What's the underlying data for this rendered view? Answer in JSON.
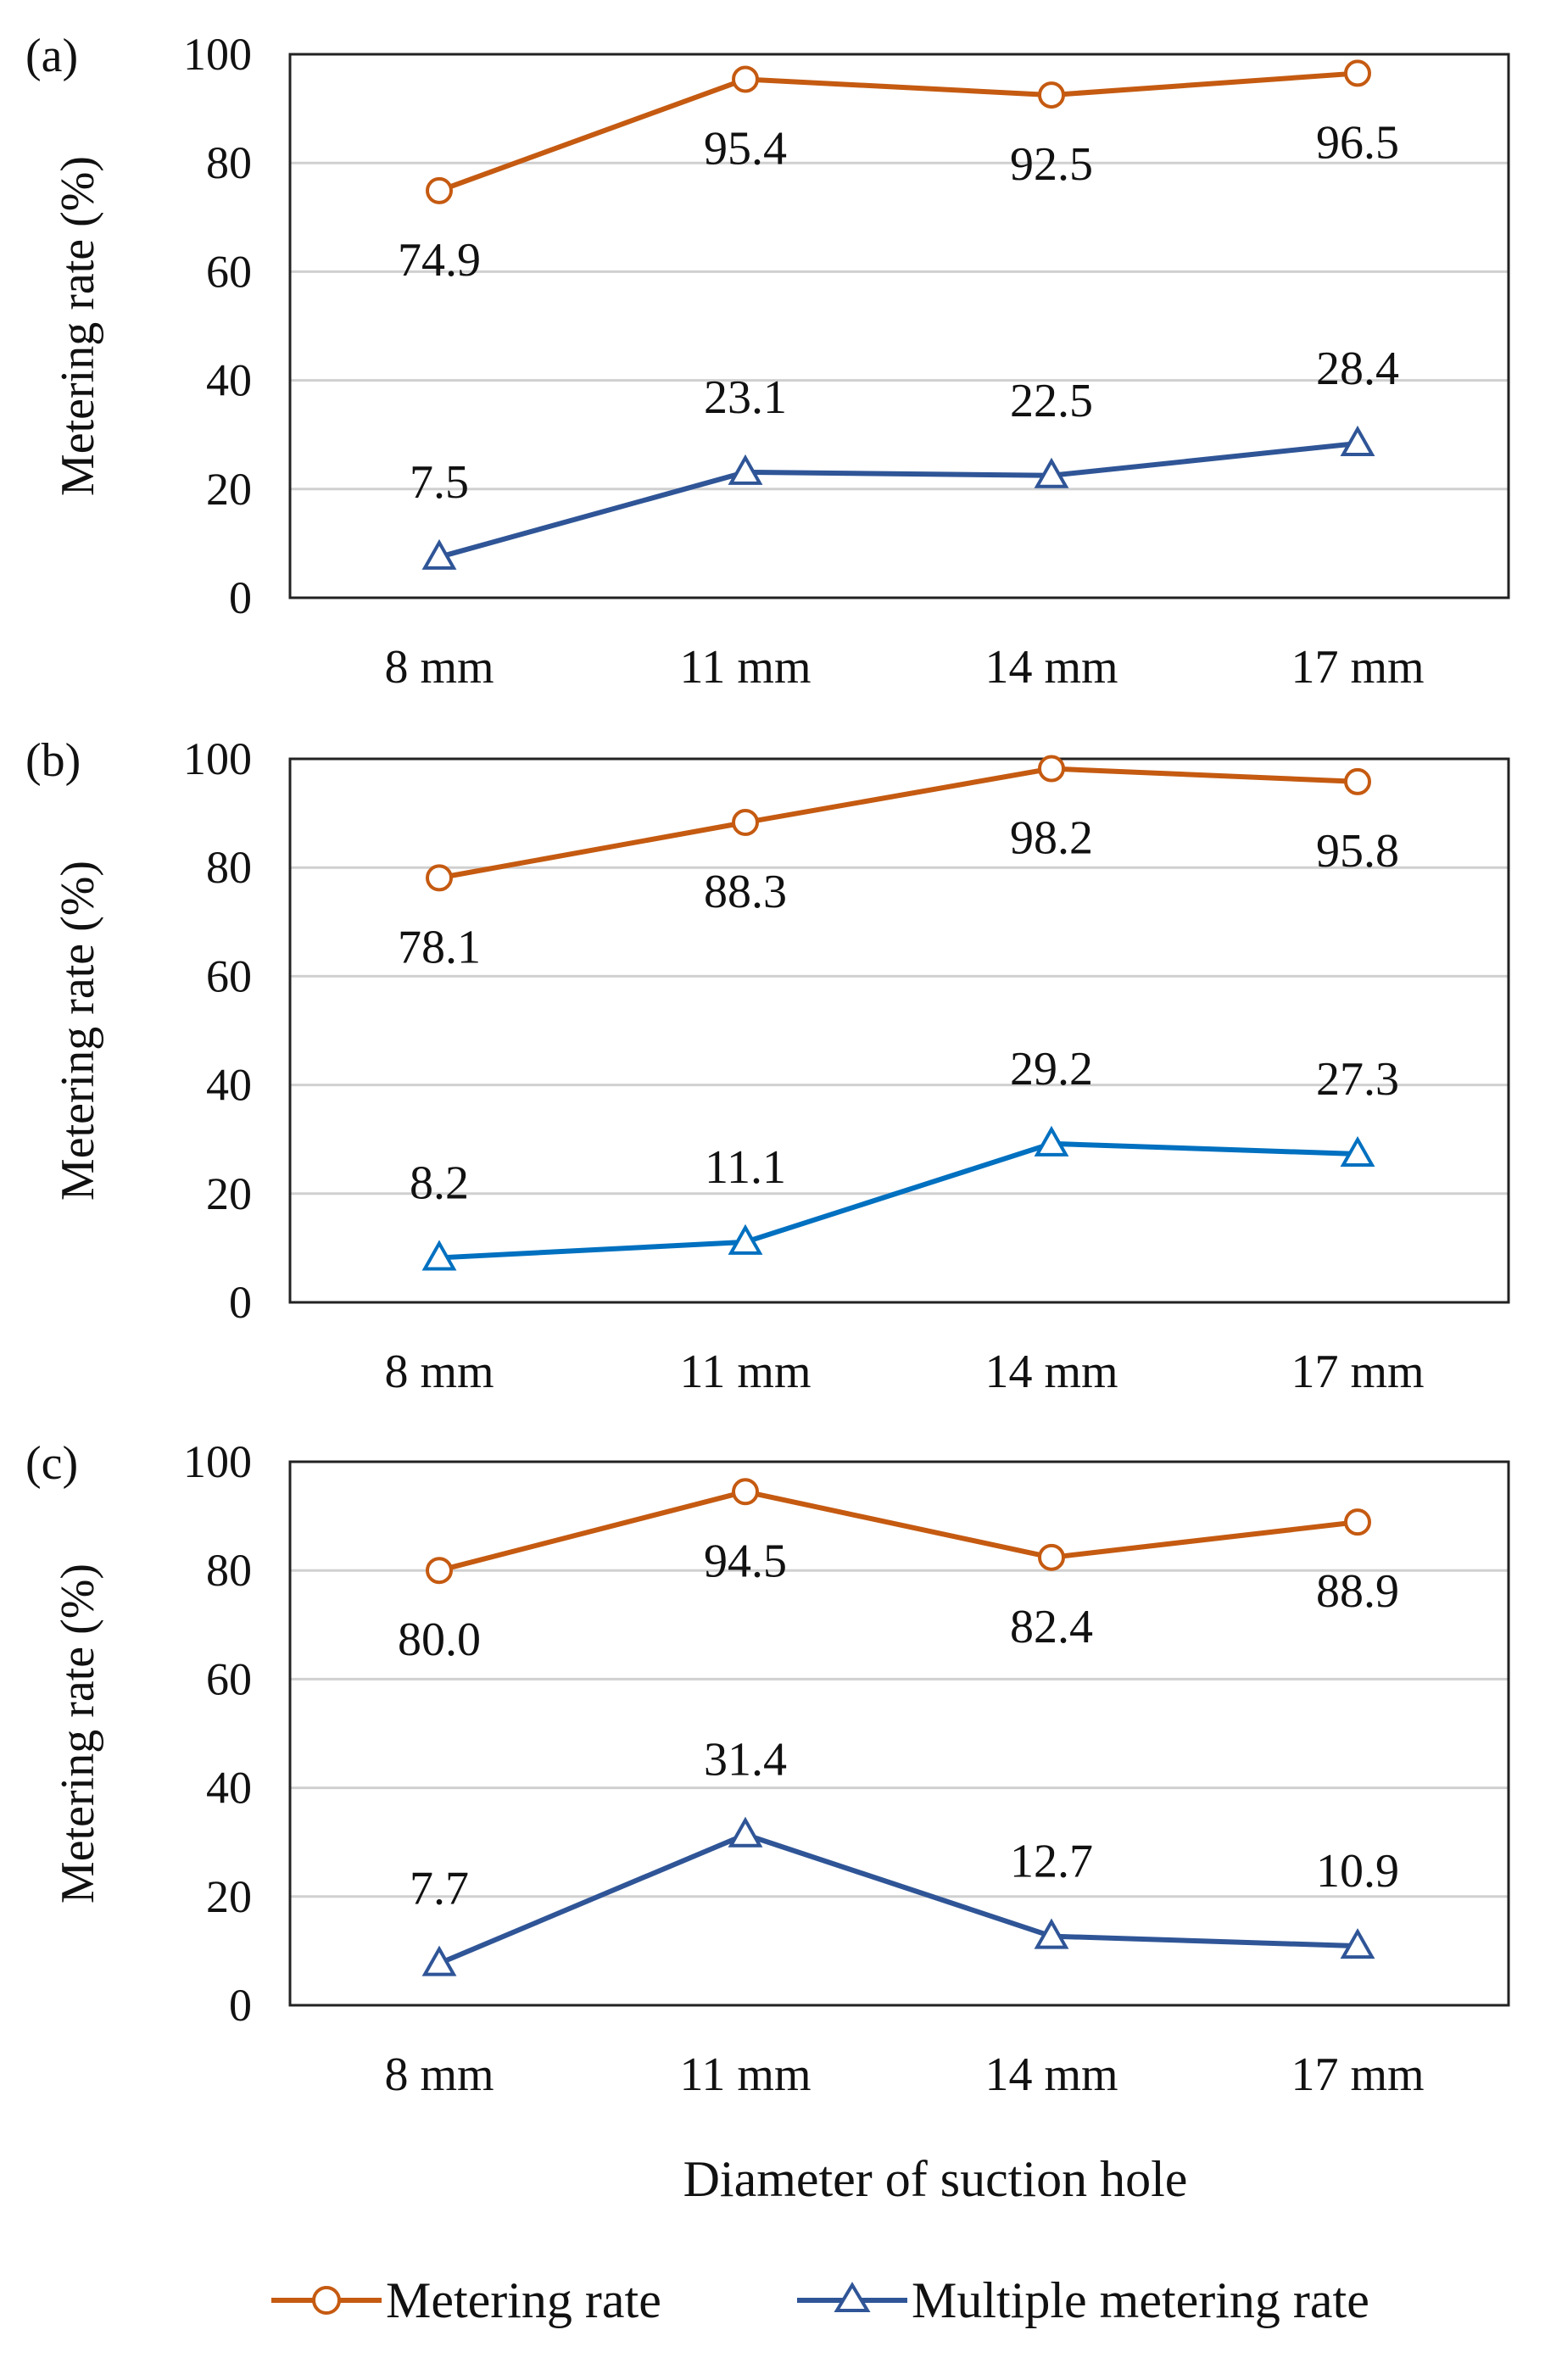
{
  "chart_data": {
    "type": "line",
    "xlabel": "Diameter of suction hole",
    "ylabel": "Metering rate (%)",
    "ylim": [
      0,
      100
    ],
    "yticks": [
      "0",
      "20",
      "40",
      "60",
      "80",
      "100"
    ],
    "categories": [
      "8 mm",
      "11 mm",
      "14 mm",
      "17 mm"
    ],
    "grid": true,
    "legend_placement": "bottom",
    "legend": [
      "Metering rate",
      "Multiple metering rate"
    ],
    "colors": {
      "metering": "#C55A11",
      "multiple_dark": "#2F5597",
      "multiple_light": "#0070C0"
    },
    "panels": [
      {
        "label": "(a)",
        "series": [
          {
            "name": "Metering rate",
            "values": [
              74.9,
              95.4,
              92.5,
              96.5
            ],
            "labels": [
              "74.9",
              "95.4",
              "92.5",
              "96.5"
            ]
          },
          {
            "name": "Multiple metering rate",
            "values": [
              7.5,
              23.1,
              22.5,
              28.4
            ],
            "labels": [
              "7.5",
              "23.1",
              "22.5",
              "28.4"
            ]
          }
        ]
      },
      {
        "label": "(b)",
        "series": [
          {
            "name": "Metering rate",
            "values": [
              78.1,
              88.3,
              98.2,
              95.8
            ],
            "labels": [
              "78.1",
              "88.3",
              "98.2",
              "95.8"
            ]
          },
          {
            "name": "Multiple metering rate",
            "values": [
              8.2,
              11.1,
              29.2,
              27.3
            ],
            "labels": [
              "8.2",
              "11.1",
              "29.2",
              "27.3"
            ]
          }
        ]
      },
      {
        "label": "(c)",
        "series": [
          {
            "name": "Metering rate",
            "values": [
              80.0,
              94.5,
              82.4,
              88.9
            ],
            "labels": [
              "80.0",
              "94.5",
              "82.4",
              "88.9"
            ]
          },
          {
            "name": "Multiple metering rate",
            "values": [
              7.7,
              31.4,
              12.7,
              10.9
            ],
            "labels": [
              "7.7",
              "31.4",
              "12.7",
              "10.9"
            ]
          }
        ]
      }
    ]
  }
}
